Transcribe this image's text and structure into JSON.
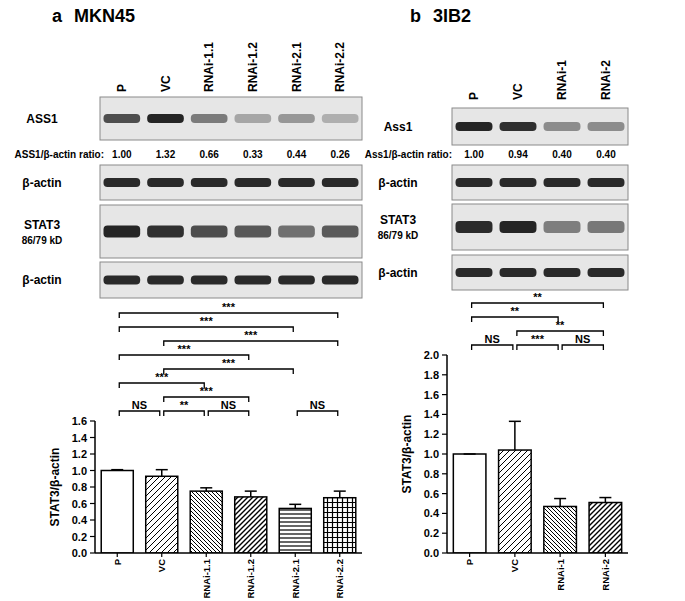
{
  "panels": [
    {
      "letter": "a",
      "title": "MKN45",
      "lanes": [
        "P",
        "VC",
        "RNAi-1.1",
        "RNAi-1.2",
        "RNAi-2.1",
        "RNAi-2.2"
      ],
      "blots": [
        {
          "label": "ASS1"
        },
        {
          "label": "β-actin"
        },
        {
          "label": "STAT3",
          "sublabel": "86/79 kD"
        },
        {
          "label": "β-actin"
        }
      ],
      "ratio_label": "ASS1/β-actin ratio:",
      "ratios": [
        "1.00",
        "1.32",
        "0.66",
        "0.33",
        "0.44",
        "0.26"
      ]
    },
    {
      "letter": "b",
      "title": "3IB2",
      "lanes": [
        "P",
        "VC",
        "RNAi-1",
        "RNAi-2"
      ],
      "blots": [
        {
          "label": "Ass1"
        },
        {
          "label": "β-actin"
        },
        {
          "label": "STAT3",
          "sublabel": "86/79 kD"
        },
        {
          "label": "β-actin"
        }
      ],
      "ratio_label": "Ass1/β-actin ratio:",
      "ratios": [
        "1.00",
        "0.94",
        "0.40",
        "0.40"
      ]
    }
  ],
  "chart_data": [
    {
      "type": "bar",
      "categories": [
        "P",
        "VC",
        "RNAi-1.1",
        "RNAi-1.2",
        "RNAi-2.1",
        "RNAi-2.2"
      ],
      "values": [
        1.0,
        0.93,
        0.75,
        0.68,
        0.54,
        0.67
      ],
      "errors": [
        0.01,
        0.08,
        0.04,
        0.07,
        0.05,
        0.08
      ],
      "color": "#000000",
      "y_label": "STAT3/β-actin",
      "ylim": [
        0,
        1.6
      ],
      "yticks": [
        {
          "value": 0,
          "label": "0.0"
        },
        {
          "value": 0.2,
          "label": "0.2"
        },
        {
          "value": 0.4,
          "label": "0.4"
        },
        {
          "value": 0.6,
          "label": "0.6"
        },
        {
          "value": 0.8,
          "label": "0.8"
        },
        {
          "value": 1.0,
          "label": "1.0"
        },
        {
          "value": 1.2,
          "label": "1.2"
        },
        {
          "value": 1.4,
          "label": "1.4"
        },
        {
          "value": 1.6,
          "label": "1.6"
        }
      ],
      "annotations": [
        {
          "between": [
            "P",
            "VC"
          ],
          "label": "NS"
        },
        {
          "between": [
            "VC",
            "RNAi-1.1"
          ],
          "label": "**"
        },
        {
          "between": [
            "RNAi-1.1",
            "RNAi-1.2"
          ],
          "label": "NS"
        },
        {
          "between": [
            "RNAi-2.1",
            "RNAi-2.2"
          ],
          "label": "NS"
        },
        {
          "between": [
            "VC",
            "RNAi-1.2"
          ],
          "label": "***"
        },
        {
          "between": [
            "P",
            "RNAi-1.1"
          ],
          "label": "***"
        },
        {
          "between": [
            "VC",
            "RNAi-2.1"
          ],
          "label": "***"
        },
        {
          "between": [
            "P",
            "RNAi-1.2"
          ],
          "label": "***"
        },
        {
          "between": [
            "VC",
            "RNAi-2.2"
          ],
          "label": "***"
        },
        {
          "between": [
            "P",
            "RNAi-2.1"
          ],
          "label": "***"
        },
        {
          "between": [
            "P",
            "RNAi-2.2"
          ],
          "label": "***"
        }
      ]
    },
    {
      "type": "bar",
      "categories": [
        "P",
        "VC",
        "RNAi-1",
        "RNAi-2"
      ],
      "values": [
        1.0,
        1.04,
        0.47,
        0.51
      ],
      "errors": [
        0.0,
        0.29,
        0.08,
        0.05
      ],
      "color": "#000000",
      "y_label": "STAT3/β-actin",
      "ylim": [
        0,
        2.0
      ],
      "yticks": [
        {
          "value": 0,
          "label": "0.0"
        },
        {
          "value": 0.2,
          "label": "0.2"
        },
        {
          "value": 0.4,
          "label": "0.4"
        },
        {
          "value": 0.6,
          "label": "0.6"
        },
        {
          "value": 0.8,
          "label": "0.8"
        },
        {
          "value": 1.0,
          "label": "1.0"
        },
        {
          "value": 1.2,
          "label": "1.2"
        },
        {
          "value": 1.4,
          "label": "1.4"
        },
        {
          "value": 1.6,
          "label": "1.6"
        },
        {
          "value": 1.8,
          "label": "1.8"
        },
        {
          "value": 2.0,
          "label": "2.0"
        }
      ],
      "annotations": [
        {
          "between": [
            "P",
            "VC"
          ],
          "label": "NS"
        },
        {
          "between": [
            "VC",
            "RNAi-1"
          ],
          "label": "***"
        },
        {
          "between": [
            "RNAi-1",
            "RNAi-2"
          ],
          "label": "NS"
        },
        {
          "between": [
            "VC",
            "RNAi-2"
          ],
          "label": "**"
        },
        {
          "between": [
            "P",
            "RNAi-1"
          ],
          "label": "**"
        },
        {
          "between": [
            "P",
            "RNAi-2"
          ],
          "label": "**"
        }
      ]
    }
  ]
}
